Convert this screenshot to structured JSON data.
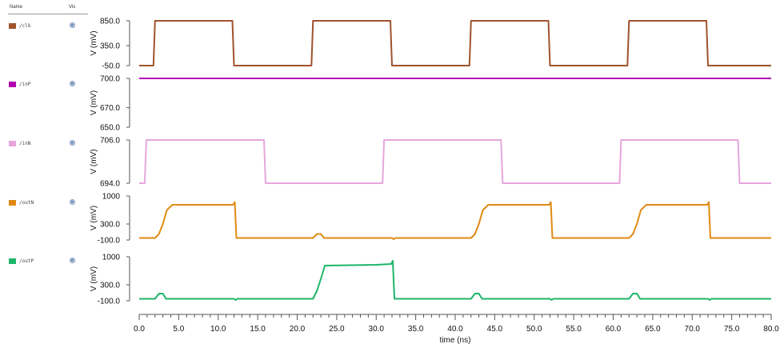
{
  "legend": {
    "name_header": "Name",
    "vis_header": "Vis",
    "items": [
      {
        "label": "/clk",
        "color": "#a0522d"
      },
      {
        "label": "/inP",
        "color": "#b000b0"
      },
      {
        "label": "/inN",
        "color": "#e6a6dc"
      },
      {
        "label": "/outN",
        "color": "#e08a14"
      },
      {
        "label": "/outP",
        "color": "#1db56a"
      }
    ]
  },
  "chart_data": {
    "type": "line",
    "xlabel": "time (ns)",
    "xlim": [
      0,
      80
    ],
    "xticks": [
      "0.0",
      "5.0",
      "10.0",
      "15.0",
      "20.0",
      "25.0",
      "30.0",
      "35.0",
      "40.0",
      "45.0",
      "50.0",
      "55.0",
      "60.0",
      "65.0",
      "70.0",
      "75.0",
      "80.0"
    ],
    "panels": [
      {
        "name": "/clk",
        "color": "#a0522d",
        "ylabel": "V (mV)",
        "ylim": [
          -50,
          850
        ],
        "ytick_labels": [
          "850.0",
          "350.0",
          "-50.0"
        ],
        "ytick_values": [
          850,
          350,
          -50
        ],
        "points": [
          [
            0,
            -50
          ],
          [
            1.8,
            -50
          ],
          [
            2.0,
            850
          ],
          [
            11.8,
            850
          ],
          [
            12.0,
            -50
          ],
          [
            21.8,
            -50
          ],
          [
            22.0,
            850
          ],
          [
            31.8,
            850
          ],
          [
            32.0,
            -50
          ],
          [
            41.8,
            -50
          ],
          [
            42.0,
            850
          ],
          [
            51.8,
            850
          ],
          [
            52.0,
            -50
          ],
          [
            61.8,
            -50
          ],
          [
            62.0,
            850
          ],
          [
            71.8,
            850
          ],
          [
            72.0,
            -50
          ],
          [
            80,
            -50
          ]
        ]
      },
      {
        "name": "/inP",
        "color": "#b000b0",
        "ylabel": "V (mV)",
        "ylim": [
          650,
          700
        ],
        "ytick_labels": [
          "700.0",
          "670.0",
          "650.0"
        ],
        "ytick_values": [
          700,
          670,
          650
        ],
        "points": [
          [
            0,
            700
          ],
          [
            80,
            700
          ]
        ]
      },
      {
        "name": "/inN",
        "color": "#e6a6dc",
        "ylabel": "V (mV)",
        "ylim": [
          694,
          706
        ],
        "ytick_labels": [
          "706.0",
          "694.0"
        ],
        "ytick_values": [
          706,
          694
        ],
        "points": [
          [
            0,
            694
          ],
          [
            0.7,
            694
          ],
          [
            0.9,
            706
          ],
          [
            15.8,
            706
          ],
          [
            16.0,
            694
          ],
          [
            30.8,
            694
          ],
          [
            31.0,
            706
          ],
          [
            45.8,
            706
          ],
          [
            46.0,
            694
          ],
          [
            60.8,
            694
          ],
          [
            61.0,
            706
          ],
          [
            75.8,
            706
          ],
          [
            76.0,
            694
          ],
          [
            80,
            694
          ]
        ]
      },
      {
        "name": "/outN",
        "color": "#e08a14",
        "ylabel": "V (mV)",
        "ylim": [
          -100,
          1000
        ],
        "ytick_labels": [
          "1000",
          "300.0",
          "-100.0"
        ],
        "ytick_values": [
          1000,
          300,
          -100
        ],
        "points": [
          [
            0,
            -50
          ],
          [
            2.0,
            -50
          ],
          [
            2.5,
            50
          ],
          [
            3.0,
            300
          ],
          [
            3.5,
            650
          ],
          [
            4.2,
            780
          ],
          [
            11.9,
            780
          ],
          [
            12.1,
            850
          ],
          [
            12.3,
            -50
          ],
          [
            22.0,
            -50
          ],
          [
            22.5,
            50
          ],
          [
            23.0,
            50
          ],
          [
            23.4,
            -50
          ],
          [
            32.0,
            -50
          ],
          [
            32.2,
            -80
          ],
          [
            32.4,
            -50
          ],
          [
            42.0,
            -50
          ],
          [
            42.5,
            50
          ],
          [
            43.0,
            300
          ],
          [
            43.5,
            650
          ],
          [
            44.2,
            780
          ],
          [
            51.9,
            780
          ],
          [
            52.1,
            850
          ],
          [
            52.3,
            -50
          ],
          [
            62.0,
            -50
          ],
          [
            62.5,
            50
          ],
          [
            63.0,
            300
          ],
          [
            63.5,
            650
          ],
          [
            64.2,
            780
          ],
          [
            71.9,
            780
          ],
          [
            72.1,
            850
          ],
          [
            72.3,
            -50
          ],
          [
            80,
            -50
          ]
        ]
      },
      {
        "name": "/outP",
        "color": "#1db56a",
        "ylabel": "V (mV)",
        "ylim": [
          -100,
          1000
        ],
        "ytick_labels": [
          "1000",
          "300.0",
          "-100.0"
        ],
        "ytick_values": [
          1000,
          300,
          -100
        ],
        "points": [
          [
            0,
            -50
          ],
          [
            2.0,
            -50
          ],
          [
            2.5,
            80
          ],
          [
            3.0,
            80
          ],
          [
            3.4,
            -50
          ],
          [
            12.0,
            -50
          ],
          [
            12.2,
            -80
          ],
          [
            12.4,
            -50
          ],
          [
            22.0,
            -50
          ],
          [
            22.5,
            150
          ],
          [
            23.0,
            450
          ],
          [
            23.5,
            780
          ],
          [
            30,
            800
          ],
          [
            31.9,
            820
          ],
          [
            32.1,
            900
          ],
          [
            32.3,
            -50
          ],
          [
            42.0,
            -50
          ],
          [
            42.5,
            80
          ],
          [
            43.0,
            80
          ],
          [
            43.4,
            -50
          ],
          [
            52.0,
            -50
          ],
          [
            52.2,
            -80
          ],
          [
            52.4,
            -50
          ],
          [
            62.0,
            -50
          ],
          [
            62.5,
            80
          ],
          [
            63.0,
            80
          ],
          [
            63.4,
            -50
          ],
          [
            72.0,
            -50
          ],
          [
            72.2,
            -80
          ],
          [
            72.4,
            -50
          ],
          [
            80,
            -50
          ]
        ]
      }
    ]
  }
}
